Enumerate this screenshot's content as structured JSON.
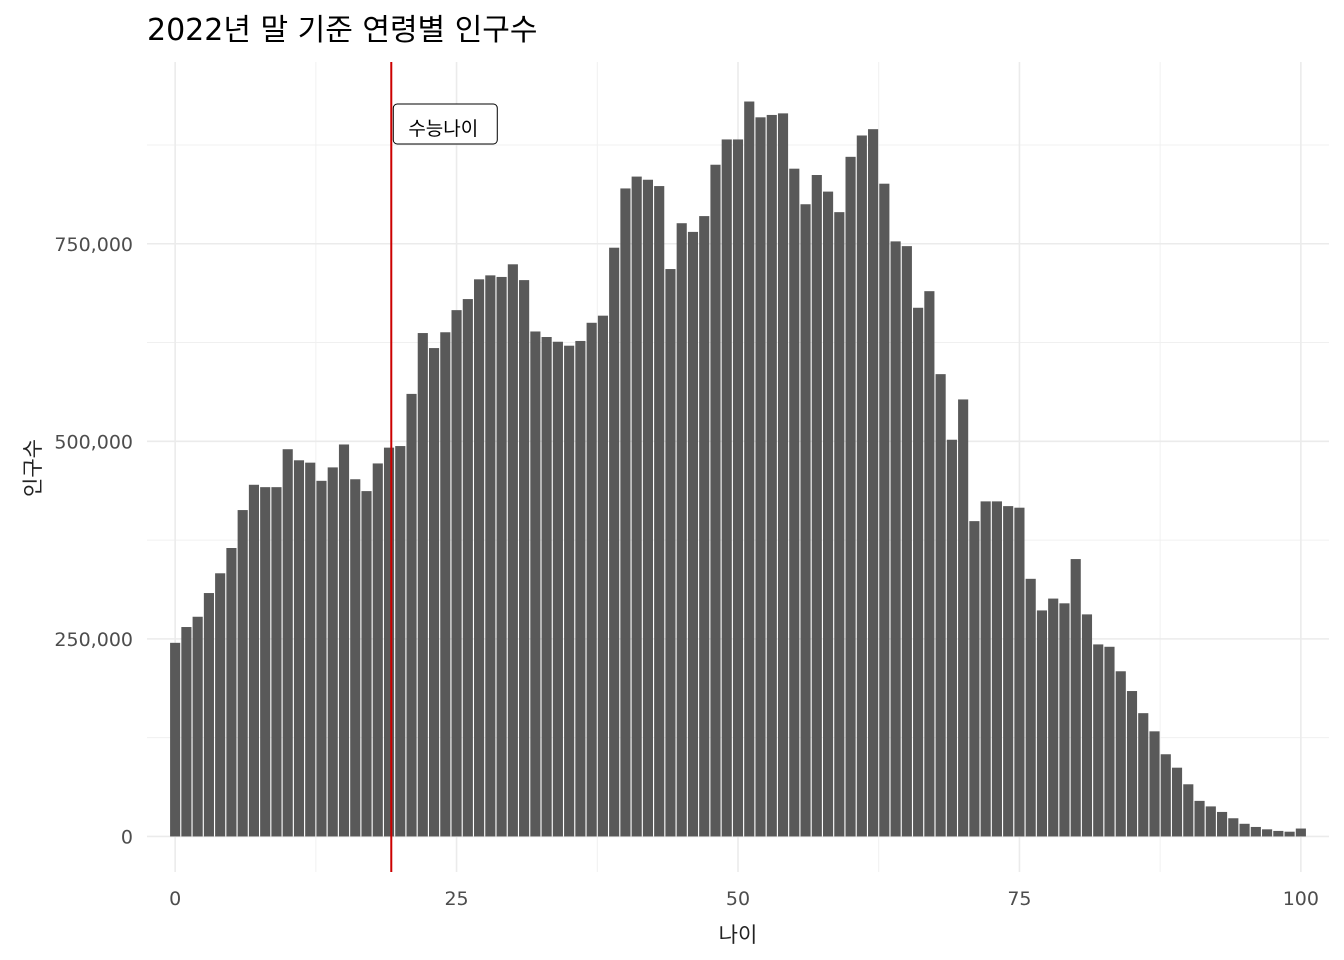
{
  "chart_data": {
    "type": "bar",
    "title": "2022년 말 기준 연령별 인구수",
    "xlabel": "나이",
    "ylabel": "인구수",
    "xlim": [
      -2.5,
      102.5
    ],
    "ylim": [
      -45000,
      980000
    ],
    "x_ticks": [
      0,
      25,
      50,
      75,
      100
    ],
    "x_tick_labels": [
      "0",
      "25",
      "50",
      "75",
      "100"
    ],
    "y_ticks": [
      0,
      250000,
      500000,
      750000
    ],
    "y_tick_labels": [
      "0",
      "250,000",
      "500,000",
      "750,000"
    ],
    "grid": true,
    "bar_color": "#595959",
    "x": [
      0,
      1,
      2,
      3,
      4,
      5,
      6,
      7,
      8,
      9,
      10,
      11,
      12,
      13,
      14,
      15,
      16,
      17,
      18,
      19,
      20,
      21,
      22,
      23,
      24,
      25,
      26,
      27,
      28,
      29,
      30,
      31,
      32,
      33,
      34,
      35,
      36,
      37,
      38,
      39,
      40,
      41,
      42,
      43,
      44,
      45,
      46,
      47,
      48,
      49,
      50,
      51,
      52,
      53,
      54,
      55,
      56,
      57,
      58,
      59,
      60,
      61,
      62,
      63,
      64,
      65,
      66,
      67,
      68,
      69,
      70,
      71,
      72,
      73,
      74,
      75,
      76,
      77,
      78,
      79,
      80,
      81,
      82,
      83,
      84,
      85,
      86,
      87,
      88,
      89,
      90,
      91,
      92,
      93,
      94,
      95,
      96,
      97,
      98,
      99,
      100
    ],
    "values": [
      245000,
      265000,
      278000,
      308000,
      333000,
      365000,
      413000,
      445000,
      442000,
      442000,
      490000,
      476000,
      473000,
      450000,
      467000,
      496000,
      452000,
      437000,
      472000,
      492000,
      494000,
      560000,
      637000,
      618000,
      638000,
      666000,
      680000,
      705000,
      710000,
      708000,
      724000,
      704000,
      639000,
      632000,
      626000,
      621000,
      627000,
      650000,
      659000,
      745000,
      820000,
      835000,
      831000,
      823000,
      718000,
      776000,
      765000,
      785000,
      850000,
      882000,
      882000,
      930000,
      910000,
      913000,
      915000,
      845000,
      800000,
      837000,
      816000,
      790000,
      860000,
      887000,
      895000,
      826000,
      753000,
      747000,
      669000,
      690000,
      585000,
      502000,
      553000,
      399000,
      424000,
      424000,
      418000,
      416000,
      326000,
      286000,
      301000,
      295000,
      351000,
      281000,
      243000,
      240000,
      209000,
      184000,
      156000,
      133000,
      104000,
      87000,
      66000,
      45000,
      38000,
      31000,
      23000,
      16000,
      12000,
      9000,
      7000,
      6000,
      10000
    ],
    "annotation": {
      "label": "수능나이",
      "vline_x": 19.2,
      "vline_color": "#cc0000"
    }
  }
}
